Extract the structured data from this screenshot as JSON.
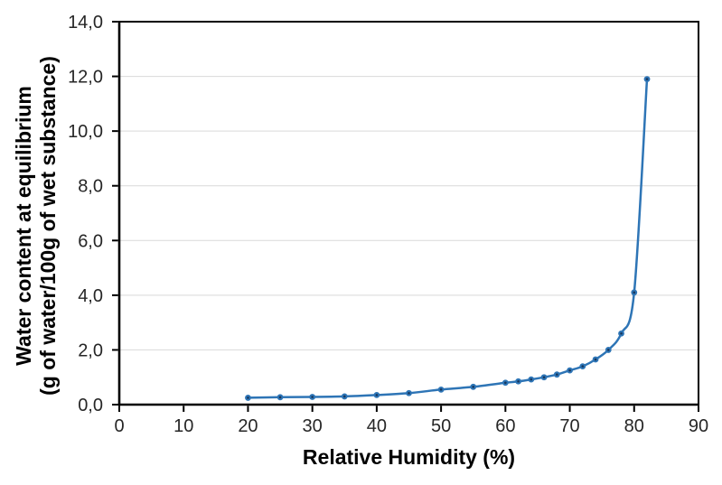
{
  "chart_data": {
    "type": "line",
    "xlabel": "Relative Humidity (%)",
    "ylabel_line1": "Water content at equilibrium",
    "ylabel_line2": "(g of water/100g of wet substance)",
    "xlim": [
      0,
      90
    ],
    "ylim": [
      0,
      14
    ],
    "grid": "horizontal-only",
    "legend": "none",
    "decimal_separator": ",",
    "x_ticks": {
      "values": [
        0,
        10,
        20,
        30,
        40,
        50,
        60,
        70,
        80,
        90
      ],
      "labels": [
        "0",
        "10",
        "20",
        "30",
        "40",
        "50",
        "60",
        "70",
        "80",
        "90"
      ]
    },
    "y_ticks": {
      "values": [
        0,
        2,
        4,
        6,
        8,
        10,
        12,
        14
      ],
      "labels": [
        "0,0",
        "2,0",
        "4,0",
        "6,0",
        "8,0",
        "10,0",
        "12,0",
        "14,0"
      ]
    },
    "series": [
      {
        "name": "water-content-sorption-curve",
        "marker": "circle-with-dark-center-dot",
        "x": [
          20,
          25,
          30,
          35,
          40,
          45,
          50,
          55,
          60,
          62,
          64,
          66,
          68,
          70,
          72,
          74,
          76,
          78,
          80,
          82
        ],
        "y": [
          0.25,
          0.27,
          0.28,
          0.3,
          0.35,
          0.42,
          0.55,
          0.65,
          0.8,
          0.85,
          0.92,
          1.0,
          1.1,
          1.25,
          1.4,
          1.65,
          2.0,
          2.6,
          4.1,
          11.9
        ]
      }
    ],
    "colors": {
      "line": "#2E75B6",
      "marker_fill": "#2E75B6",
      "marker_center": "#17375E",
      "grid": "#D9D9D9",
      "axis": "#000000",
      "tick_text": "#262626",
      "title_text": "#000000",
      "background": "#FFFFFF"
    }
  }
}
